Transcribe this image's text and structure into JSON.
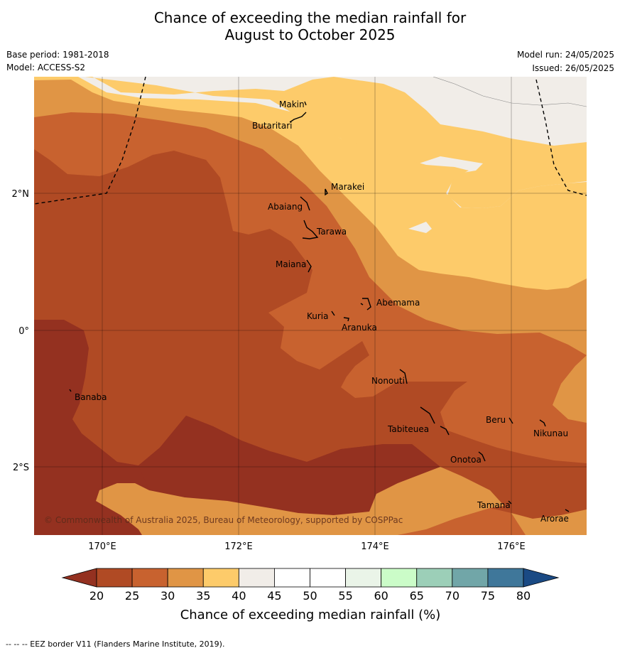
{
  "title_line1": "Chance of exceeding the median rainfall for",
  "title_line2": "August to October 2025",
  "base_period": "Base period: 1981-2018",
  "model": "Model: ACCESS-S2",
  "model_run": "Model run: 24/05/2025",
  "issued": "Issued: 26/05/2025",
  "copyright": "© Commonwealth of Australia 2025, Bureau of Meteorology, supported by COSPPac",
  "lon_labels": [
    "170°E",
    "172°E",
    "174°E",
    "176°E"
  ],
  "lat_labels": [
    "2°N",
    "0°",
    "2°S"
  ],
  "places": {
    "makin": "Makin",
    "butaritari": "Butaritari",
    "marakei": "Marakei",
    "abaiang": "Abaiang",
    "tarawa": "Tarawa",
    "maiana": "Maiana",
    "abemama": "Abemama",
    "kuria": "Kuria",
    "aranuka": "Aranuka",
    "banaba": "Banaba",
    "nonouti": "Nonouti",
    "tabiteuea": "Tabiteuea",
    "beru": "Beru",
    "nikunau": "Nikunau",
    "onotoa": "Onotoa",
    "tamana": "Tamana",
    "arorae": "Arorae"
  },
  "colorbar": {
    "ticks": [
      "20",
      "25",
      "30",
      "35",
      "40",
      "45",
      "50",
      "55",
      "60",
      "65",
      "70",
      "75",
      "80"
    ],
    "colors": [
      "#b04a24",
      "#c8622f",
      "#e09545",
      "#fdcb6a",
      "#f1ede8",
      "#ffffff",
      "#ffffff",
      "#eaf4e8",
      "#cbfcc8",
      "#9ccfb8",
      "#71a6a8",
      "#3f779a",
      "#1a4a84"
    ],
    "under_color": "#943120",
    "over_color": "#1a4a84",
    "label": "Chance of exceeding median rainfall (%)"
  },
  "footnote": "--  --  -- EEZ border V11 (Flanders Marine Institute, 2019).",
  "zone_colors": {
    "below_20": "#943120",
    "20_25": "#b04a24",
    "25_30": "#c8622f",
    "30_35": "#e09545",
    "35_40": "#fdcb6a",
    "40_45": "#f1ede8"
  }
}
